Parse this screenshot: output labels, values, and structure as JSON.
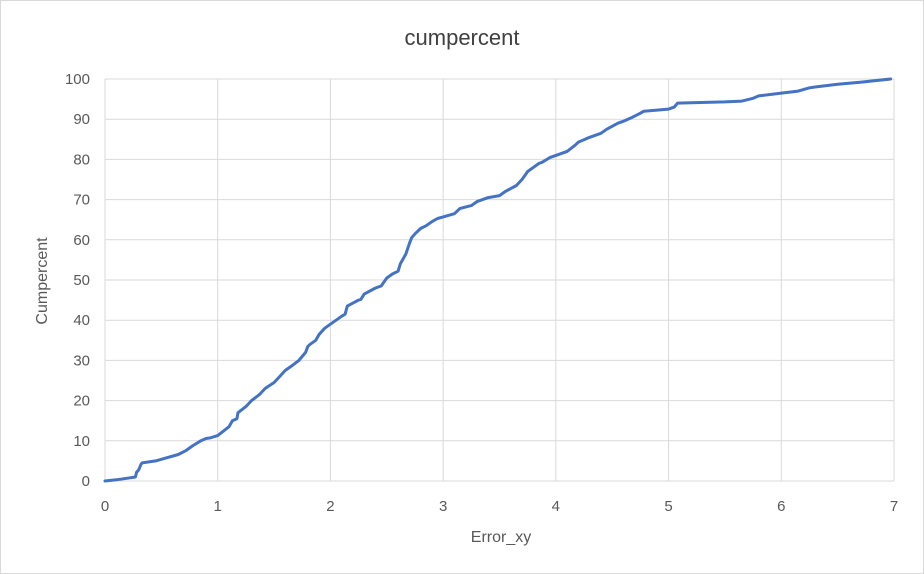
{
  "colors": {
    "series": "#4472c4",
    "grid": "#d9d9d9",
    "text": "#595959"
  },
  "chart_data": {
    "type": "line",
    "title": "cumpercent",
    "xlabel": "Error_xy",
    "ylabel": "Cumpercent",
    "xlim": [
      0,
      7
    ],
    "ylim": [
      0,
      100
    ],
    "xticks": [
      0,
      1,
      2,
      3,
      4,
      5,
      6,
      7
    ],
    "yticks": [
      0,
      10,
      20,
      30,
      40,
      50,
      60,
      70,
      80,
      90,
      100
    ],
    "grid": true,
    "legend": "none",
    "series": [
      {
        "name": "cumpercent",
        "x": [
          0,
          0.1,
          0.2,
          0.27,
          0.28,
          0.3,
          0.32,
          0.33,
          0.45,
          0.55,
          0.65,
          0.72,
          0.78,
          0.85,
          0.9,
          0.93,
          1.0,
          1.05,
          1.1,
          1.13,
          1.17,
          1.18,
          1.25,
          1.3,
          1.37,
          1.42,
          1.5,
          1.55,
          1.6,
          1.65,
          1.72,
          1.78,
          1.8,
          1.82,
          1.87,
          1.9,
          1.95,
          2.0,
          2.05,
          2.1,
          2.13,
          2.15,
          2.25,
          2.27,
          2.3,
          2.4,
          2.45,
          2.5,
          2.55,
          2.6,
          2.62,
          2.65,
          2.67,
          2.7,
          2.72,
          2.75,
          2.8,
          2.85,
          2.9,
          2.95,
          3.0,
          3.1,
          3.15,
          3.25,
          3.3,
          3.4,
          3.5,
          3.55,
          3.65,
          3.7,
          3.75,
          3.8,
          3.85,
          3.88,
          3.95,
          4.0,
          4.1,
          4.17,
          4.2,
          4.3,
          4.4,
          4.45,
          4.55,
          4.6,
          4.68,
          4.75,
          4.78,
          5.0,
          5.05,
          5.08,
          5.2,
          5.5,
          5.65,
          5.75,
          5.8,
          6.0,
          6.15,
          6.25,
          6.3,
          6.5,
          6.7,
          6.97
        ],
        "y": [
          0,
          0.3,
          0.7,
          1.0,
          2.2,
          2.8,
          4.2,
          4.5,
          5.0,
          5.8,
          6.6,
          7.6,
          8.8,
          10.0,
          10.6,
          10.7,
          11.3,
          12.4,
          13.5,
          15.0,
          15.5,
          17.0,
          18.5,
          20.0,
          21.5,
          23.0,
          24.5,
          26.0,
          27.5,
          28.5,
          30.0,
          32.0,
          33.5,
          34.0,
          35.0,
          36.5,
          38.0,
          39.0,
          40.0,
          41.0,
          41.5,
          43.5,
          45.0,
          45.2,
          46.5,
          48.0,
          48.5,
          50.5,
          51.5,
          52.2,
          54.0,
          55.5,
          56.5,
          59.0,
          60.5,
          61.5,
          62.8,
          63.5,
          64.5,
          65.3,
          65.7,
          66.5,
          67.8,
          68.5,
          69.5,
          70.5,
          71.0,
          72.0,
          73.5,
          75.0,
          77.0,
          78.0,
          79.0,
          79.3,
          80.5,
          81.0,
          82.0,
          83.5,
          84.3,
          85.5,
          86.5,
          87.5,
          89.0,
          89.5,
          90.5,
          91.5,
          92.0,
          92.5,
          93.0,
          94.0,
          94.1,
          94.3,
          94.5,
          95.2,
          95.8,
          96.5,
          97.0,
          97.8,
          98.0,
          98.7,
          99.2,
          100
        ]
      }
    ]
  }
}
